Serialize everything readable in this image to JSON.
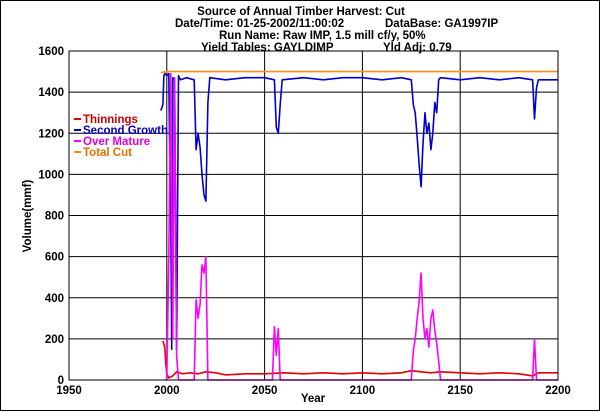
{
  "header": {
    "line1": "Source of Annual Timber Harvest: Cut",
    "datetime": "Date/Time: 01-25-2002/11:00:02",
    "database": "DataBase: GA1997IP",
    "run_name": "Run Name: Raw IMP, 1.5 mill cf/y, 50%",
    "yield_tables": "Yield Tables: GAYLDIMP",
    "yld_adj": "Yld Adj: 0.79"
  },
  "chart_data": {
    "type": "line",
    "title": "Source of Annual Timber Harvest: Cut",
    "xlabel": "Year",
    "ylabel": "Volume(mmf)",
    "xlim": [
      1950,
      2200
    ],
    "ylim": [
      0,
      1600
    ],
    "x_ticks": [
      1950,
      2000,
      2050,
      2100,
      2150,
      2200
    ],
    "y_ticks": [
      0,
      200,
      400,
      600,
      800,
      1000,
      1200,
      1400,
      1600
    ],
    "grid": true,
    "legend_position": "top-left",
    "series": [
      {
        "name": "Thinnings",
        "color": "#e00000",
        "points": [
          [
            1998,
            190
          ],
          [
            1999,
            160
          ],
          [
            1999.5,
            80
          ],
          [
            2000,
            30
          ],
          [
            2001,
            10
          ],
          [
            2003,
            20
          ],
          [
            2005,
            40
          ],
          [
            2008,
            30
          ],
          [
            2012,
            35
          ],
          [
            2016,
            30
          ],
          [
            2020,
            40
          ],
          [
            2025,
            35
          ],
          [
            2030,
            25
          ],
          [
            2040,
            30
          ],
          [
            2050,
            30
          ],
          [
            2060,
            35
          ],
          [
            2070,
            30
          ],
          [
            2080,
            35
          ],
          [
            2090,
            30
          ],
          [
            2100,
            35
          ],
          [
            2110,
            30
          ],
          [
            2120,
            35
          ],
          [
            2125,
            45
          ],
          [
            2130,
            40
          ],
          [
            2135,
            35
          ],
          [
            2140,
            40
          ],
          [
            2150,
            35
          ],
          [
            2160,
            30
          ],
          [
            2170,
            35
          ],
          [
            2180,
            30
          ],
          [
            2187,
            20
          ],
          [
            2190,
            35
          ],
          [
            2200,
            35
          ]
        ]
      },
      {
        "name": "Second Growth",
        "color": "#0000cc",
        "points": [
          [
            1997,
            1310
          ],
          [
            1998,
            1340
          ],
          [
            1998.5,
            1480
          ],
          [
            1999,
            1490
          ],
          [
            2000,
            1480
          ],
          [
            2001,
            1490
          ],
          [
            2001.5,
            1100
          ],
          [
            2002,
            900
          ],
          [
            2002.5,
            150
          ],
          [
            2003,
            1470
          ],
          [
            2004,
            1460
          ],
          [
            2005,
            150
          ],
          [
            2006,
            1480
          ],
          [
            2007,
            1460
          ],
          [
            2010,
            1470
          ],
          [
            2014,
            1460
          ],
          [
            2015,
            1120
          ],
          [
            2016,
            1200
          ],
          [
            2017,
            1130
          ],
          [
            2018,
            1000
          ],
          [
            2019,
            900
          ],
          [
            2020,
            870
          ],
          [
            2021,
            1350
          ],
          [
            2022,
            1470
          ],
          [
            2030,
            1460
          ],
          [
            2040,
            1470
          ],
          [
            2050,
            1470
          ],
          [
            2055,
            1460
          ],
          [
            2056,
            1230
          ],
          [
            2057,
            1200
          ],
          [
            2058,
            1340
          ],
          [
            2059,
            1460
          ],
          [
            2070,
            1470
          ],
          [
            2080,
            1460
          ],
          [
            2090,
            1470
          ],
          [
            2100,
            1470
          ],
          [
            2110,
            1460
          ],
          [
            2120,
            1470
          ],
          [
            2125,
            1460
          ],
          [
            2126,
            1340
          ],
          [
            2127,
            1300
          ],
          [
            2128,
            1180
          ],
          [
            2129,
            1050
          ],
          [
            2130,
            940
          ],
          [
            2131,
            1150
          ],
          [
            2132,
            1300
          ],
          [
            2133,
            1200
          ],
          [
            2134,
            1250
          ],
          [
            2135,
            1120
          ],
          [
            2136,
            1200
          ],
          [
            2137,
            1350
          ],
          [
            2138,
            1300
          ],
          [
            2139,
            1460
          ],
          [
            2140,
            1470
          ],
          [
            2150,
            1460
          ],
          [
            2160,
            1470
          ],
          [
            2170,
            1460
          ],
          [
            2180,
            1470
          ],
          [
            2187,
            1460
          ],
          [
            2188,
            1270
          ],
          [
            2189,
            1420
          ],
          [
            2190,
            1460
          ],
          [
            2200,
            1460
          ]
        ]
      },
      {
        "name": "Over Mature",
        "color": "#ff00ff",
        "points": [
          [
            1999,
            0
          ],
          [
            2000,
            0
          ],
          [
            2001,
            600
          ],
          [
            2002,
            1490
          ],
          [
            2003,
            200
          ],
          [
            2004,
            1470
          ],
          [
            2005,
            120
          ],
          [
            2006,
            0
          ],
          [
            2014,
            0
          ],
          [
            2015,
            390
          ],
          [
            2016,
            300
          ],
          [
            2017,
            370
          ],
          [
            2018,
            560
          ],
          [
            2019,
            520
          ],
          [
            2020,
            600
          ],
          [
            2021,
            0
          ],
          [
            2054,
            0
          ],
          [
            2055,
            260
          ],
          [
            2056,
            120
          ],
          [
            2057,
            250
          ],
          [
            2058,
            0
          ],
          [
            2125,
            0
          ],
          [
            2126,
            140
          ],
          [
            2127,
            200
          ],
          [
            2128,
            300
          ],
          [
            2129,
            380
          ],
          [
            2130,
            520
          ],
          [
            2131,
            300
          ],
          [
            2132,
            200
          ],
          [
            2133,
            250
          ],
          [
            2134,
            160
          ],
          [
            2135,
            300
          ],
          [
            2136,
            340
          ],
          [
            2137,
            240
          ],
          [
            2138,
            180
          ],
          [
            2139,
            90
          ],
          [
            2140,
            0
          ],
          [
            2187,
            0
          ],
          [
            2188,
            200
          ],
          [
            2189,
            0
          ],
          [
            2200,
            0
          ]
        ]
      },
      {
        "name": "Total Cut",
        "color": "#ff8c1a",
        "points": [
          [
            1997,
            1495
          ],
          [
            2000,
            1500
          ],
          [
            2200,
            1500
          ]
        ]
      }
    ]
  }
}
